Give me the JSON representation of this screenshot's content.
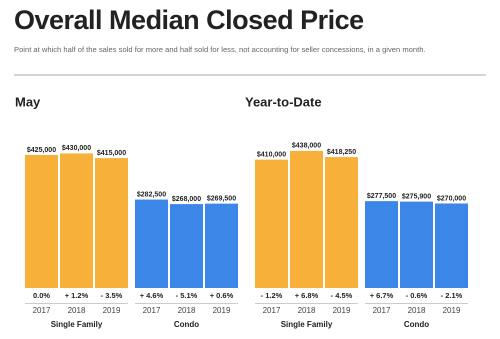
{
  "header": {
    "title": "Overall Median Closed Price",
    "subtitle": "Point at which half of the sales sold for more and half sold for less, not accounting for seller concessions, in a given month."
  },
  "chart_data": [
    {
      "type": "bar",
      "title": "May",
      "ylim": [
        0,
        460000
      ],
      "series": [
        {
          "name": "Single Family",
          "color": "#f7b13a",
          "categories": [
            "2017",
            "2018",
            "2019"
          ],
          "values": [
            425000,
            430000,
            415000
          ],
          "value_labels": [
            "$425,000",
            "$430,000",
            "$415,000"
          ],
          "changes": [
            0.0,
            1.2,
            -3.5
          ],
          "change_labels": [
            "0.0%",
            "+ 1.2%",
            "- 3.5%"
          ]
        },
        {
          "name": "Condo",
          "color": "#3b86e6",
          "categories": [
            "2017",
            "2018",
            "2019"
          ],
          "values": [
            282500,
            268000,
            269500
          ],
          "value_labels": [
            "$282,500",
            "$268,000",
            "$269,500"
          ],
          "changes": [
            4.6,
            -5.1,
            0.6
          ],
          "change_labels": [
            "+ 4.6%",
            "- 5.1%",
            "+ 0.6%"
          ]
        }
      ]
    },
    {
      "type": "bar",
      "title": "Year-to-Date",
      "ylim": [
        0,
        460000
      ],
      "series": [
        {
          "name": "Single Family",
          "color": "#f7b13a",
          "categories": [
            "2017",
            "2018",
            "2019"
          ],
          "values": [
            410000,
            438000,
            418250
          ],
          "value_labels": [
            "$410,000",
            "$438,000",
            "$418,250"
          ],
          "changes": [
            -1.2,
            6.8,
            -4.5
          ],
          "change_labels": [
            "- 1.2%",
            "+ 6.8%",
            "- 4.5%"
          ]
        },
        {
          "name": "Condo",
          "color": "#3b86e6",
          "categories": [
            "2017",
            "2018",
            "2019"
          ],
          "values": [
            277500,
            275900,
            270000
          ],
          "value_labels": [
            "$277,500",
            "$275,900",
            "$270,000"
          ],
          "changes": [
            6.7,
            -0.6,
            -2.1
          ],
          "change_labels": [
            "+ 6.7%",
            "- 0.6%",
            "- 2.1%"
          ]
        }
      ]
    }
  ]
}
